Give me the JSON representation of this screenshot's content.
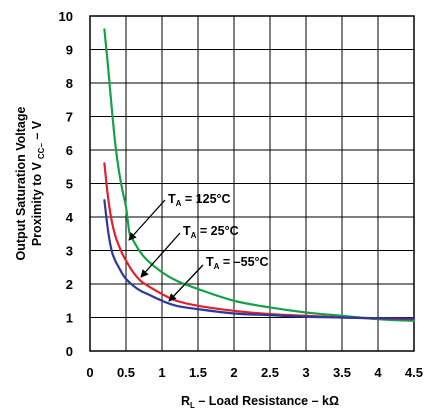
{
  "chart_data": {
    "type": "line",
    "ylabel_line1": "Output Saturation Voltage",
    "ylabel_line2_prefix": "Proximity to V",
    "ylabel_line2_sub": "CC–",
    "ylabel_line2_suffix": " – V",
    "xlabel_main": "R",
    "xlabel_sub": "L",
    "xlabel_suffix": " – Load Resistance – kΩ",
    "xlim": [
      0,
      4.5
    ],
    "ylim": [
      0,
      10
    ],
    "xticks": [
      "0",
      "0.5",
      "1",
      "1.5",
      "2",
      "2.5",
      "3",
      "3.5",
      "4",
      "4.5"
    ],
    "yticks": [
      "0",
      "1",
      "2",
      "3",
      "4",
      "5",
      "6",
      "7",
      "8",
      "9",
      "10"
    ],
    "grid": true,
    "series": [
      {
        "name": "T_A = 125°C",
        "color": "#16a04a",
        "x": [
          0.2,
          0.25,
          0.3,
          0.35,
          0.4,
          0.45,
          0.5,
          0.55,
          0.6,
          0.7,
          0.8,
          1.0,
          1.2,
          1.5,
          2.0,
          2.5,
          3.0,
          3.5,
          4.0,
          4.5
        ],
        "y": [
          9.6,
          8.5,
          7.3,
          6.2,
          5.4,
          4.8,
          4.3,
          3.5,
          3.3,
          2.95,
          2.7,
          2.35,
          2.1,
          1.85,
          1.5,
          1.3,
          1.15,
          1.05,
          0.95,
          0.9
        ]
      },
      {
        "name": "T_A = 25°C",
        "color": "#e0202a",
        "x": [
          0.2,
          0.25,
          0.3,
          0.35,
          0.4,
          0.45,
          0.5,
          0.6,
          0.7,
          0.8,
          1.0,
          1.2,
          1.5,
          2.0,
          2.5,
          3.0,
          3.5,
          4.0,
          4.5
        ],
        "y": [
          5.6,
          4.6,
          3.9,
          3.45,
          3.15,
          2.9,
          2.7,
          2.35,
          2.1,
          1.95,
          1.7,
          1.5,
          1.35,
          1.2,
          1.1,
          1.05,
          1.0,
          0.97,
          0.95
        ]
      },
      {
        "name": "T_A = –55°C",
        "color": "#2a3a9a",
        "x": [
          0.2,
          0.25,
          0.3,
          0.35,
          0.4,
          0.45,
          0.5,
          0.6,
          0.7,
          0.8,
          1.0,
          1.2,
          1.5,
          2.0,
          2.5,
          3.0,
          3.5,
          4.0,
          4.5
        ],
        "y": [
          4.5,
          3.6,
          3.0,
          2.7,
          2.5,
          2.3,
          2.15,
          1.95,
          1.8,
          1.7,
          1.5,
          1.35,
          1.25,
          1.12,
          1.07,
          1.02,
          1.0,
          0.98,
          0.97
        ]
      }
    ],
    "annotations": [
      {
        "main": "T",
        "sub": "A",
        "rest": " = 125°C",
        "series": 0
      },
      {
        "main": "T",
        "sub": "A",
        "rest": " = 25°C",
        "series": 1
      },
      {
        "main": "T",
        "sub": "A",
        "rest": " = –55°C",
        "series": 2
      }
    ]
  }
}
